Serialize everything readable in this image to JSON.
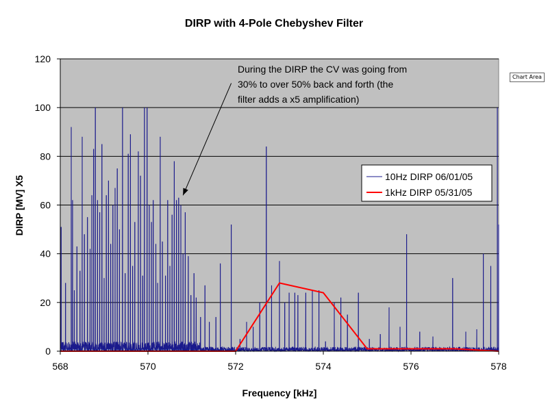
{
  "chart_area_tag": "Chart Area",
  "chart_data": {
    "type": "line",
    "title": "DIRP with 4-Pole Chebyshev Filter",
    "xlabel": "Frequency [kHz]",
    "ylabel": "DIRP [MV] X5",
    "xlim": [
      568,
      578
    ],
    "ylim": [
      0,
      120
    ],
    "x_ticks": [
      "568",
      "570",
      "572",
      "574",
      "576",
      "578"
    ],
    "y_ticks": [
      "0",
      "20",
      "40",
      "60",
      "80",
      "100",
      "120"
    ],
    "grid": "horizontal",
    "plot_background": "#c0c0c0",
    "legend_position": "right",
    "annotation": {
      "lines": [
        "During the DIRP the CV was going from",
        "30% to over 50% back and forth (the",
        "filter adds a x5 amplification)"
      ],
      "arrow_from": [
        571.9,
        110
      ],
      "arrow_to": [
        570.8,
        64
      ]
    },
    "series": [
      {
        "name": "10Hz DIRP 06/01/05",
        "color": "#1a1a8c",
        "style": "spikes",
        "spike_peaks": [
          [
            568.02,
            51
          ],
          [
            568.12,
            28
          ],
          [
            568.25,
            92
          ],
          [
            568.28,
            62
          ],
          [
            568.32,
            25
          ],
          [
            568.38,
            43
          ],
          [
            568.45,
            33
          ],
          [
            568.5,
            88
          ],
          [
            568.55,
            48
          ],
          [
            568.62,
            55
          ],
          [
            568.68,
            42
          ],
          [
            568.72,
            64
          ],
          [
            568.76,
            83
          ],
          [
            568.8,
            100
          ],
          [
            568.85,
            62
          ],
          [
            568.9,
            57
          ],
          [
            568.95,
            85
          ],
          [
            569.0,
            30
          ],
          [
            569.05,
            64
          ],
          [
            569.1,
            70
          ],
          [
            569.15,
            44
          ],
          [
            569.2,
            60
          ],
          [
            569.25,
            67
          ],
          [
            569.3,
            75
          ],
          [
            569.35,
            50
          ],
          [
            569.42,
            100
          ],
          [
            569.48,
            32
          ],
          [
            569.55,
            81
          ],
          [
            569.6,
            89
          ],
          [
            569.65,
            35
          ],
          [
            569.7,
            53
          ],
          [
            569.78,
            82
          ],
          [
            569.83,
            72
          ],
          [
            569.88,
            31
          ],
          [
            569.92,
            100
          ],
          [
            569.98,
            100
          ],
          [
            570.03,
            60
          ],
          [
            570.08,
            53
          ],
          [
            570.12,
            62
          ],
          [
            570.18,
            44
          ],
          [
            570.22,
            28
          ],
          [
            570.28,
            88
          ],
          [
            570.33,
            45
          ],
          [
            570.4,
            31
          ],
          [
            570.45,
            62
          ],
          [
            570.5,
            35
          ],
          [
            570.55,
            56
          ],
          [
            570.6,
            78
          ],
          [
            570.65,
            62
          ],
          [
            570.7,
            63
          ],
          [
            570.75,
            60
          ],
          [
            570.8,
            40
          ],
          [
            570.85,
            57
          ],
          [
            570.92,
            39
          ],
          [
            570.98,
            23
          ],
          [
            571.05,
            32
          ],
          [
            571.1,
            22
          ],
          [
            571.2,
            14
          ],
          [
            571.3,
            27
          ],
          [
            571.4,
            12
          ],
          [
            571.55,
            14
          ],
          [
            571.65,
            36
          ],
          [
            571.9,
            52
          ],
          [
            572.1,
            5
          ],
          [
            572.25,
            12
          ],
          [
            572.4,
            10
          ],
          [
            572.55,
            20
          ],
          [
            572.7,
            84
          ],
          [
            572.82,
            27
          ],
          [
            573.0,
            37
          ],
          [
            573.12,
            20
          ],
          [
            573.22,
            24
          ],
          [
            573.35,
            24
          ],
          [
            573.42,
            23
          ],
          [
            573.6,
            24
          ],
          [
            573.75,
            25
          ],
          [
            573.9,
            25
          ],
          [
            574.05,
            4
          ],
          [
            574.25,
            20
          ],
          [
            574.4,
            22
          ],
          [
            574.55,
            15
          ],
          [
            574.8,
            24
          ],
          [
            575.05,
            5
          ],
          [
            575.3,
            7
          ],
          [
            575.5,
            18
          ],
          [
            575.75,
            10
          ],
          [
            575.9,
            48
          ],
          [
            576.2,
            8
          ],
          [
            576.5,
            6
          ],
          [
            576.95,
            30
          ],
          [
            577.25,
            8
          ],
          [
            577.5,
            9
          ],
          [
            577.65,
            40
          ],
          [
            577.82,
            35
          ],
          [
            577.97,
            100
          ],
          [
            578.0,
            52
          ]
        ]
      },
      {
        "name": "1kHz DIRP 05/31/05",
        "color": "#ff0000",
        "style": "line",
        "x": [
          568,
          569,
          570,
          571,
          572,
          573,
          574,
          575,
          576,
          577,
          578
        ],
        "y": [
          0,
          0,
          0,
          0,
          0,
          28,
          24,
          1,
          1,
          1,
          0
        ]
      }
    ]
  }
}
